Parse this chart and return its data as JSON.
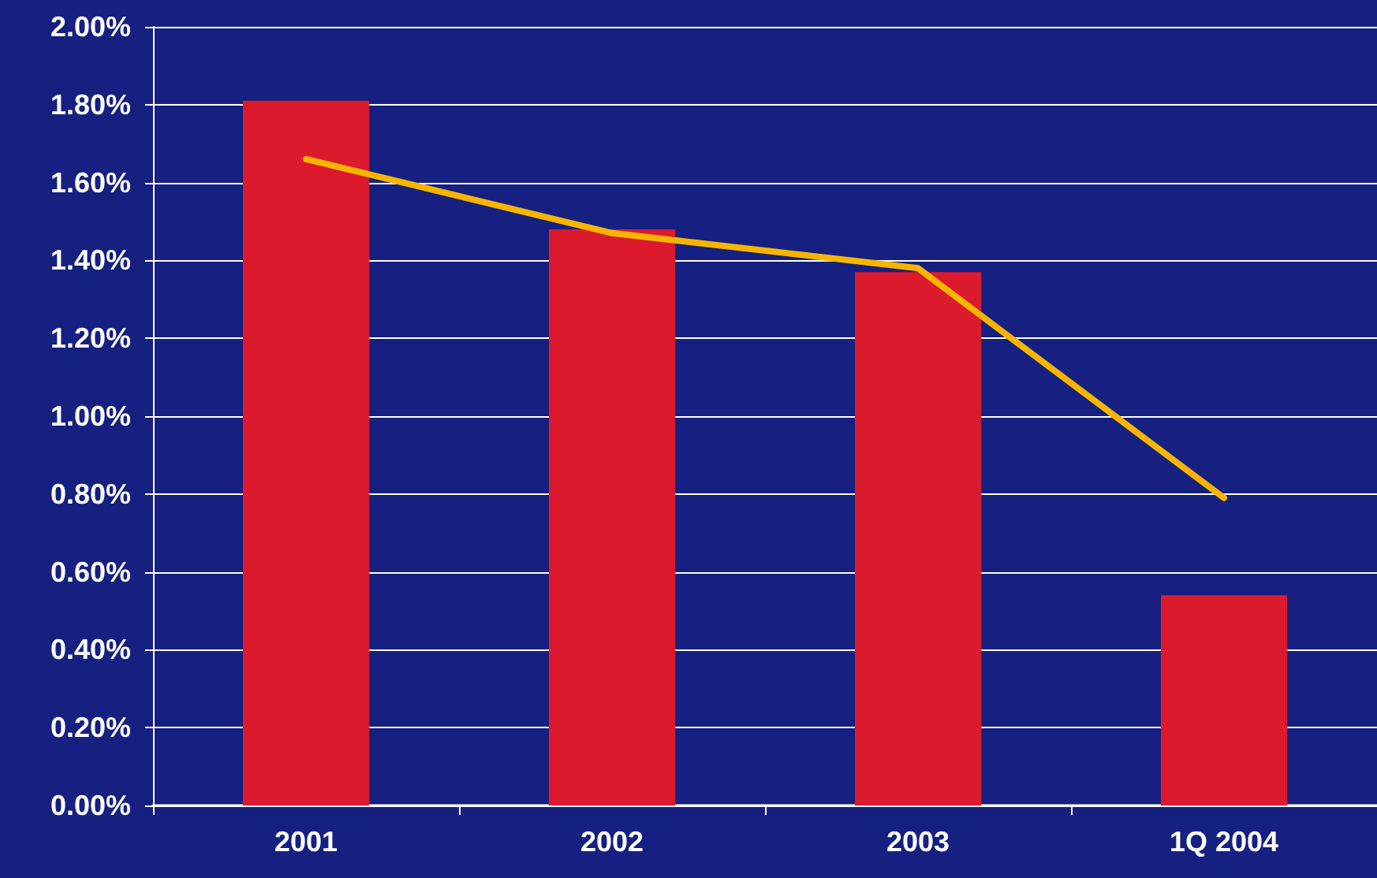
{
  "chart_data": {
    "type": "bar",
    "categories": [
      "2001",
      "2002",
      "2003",
      "1Q 2004"
    ],
    "series": [
      {
        "color": "#dc1a2e",
        "values": [
          1.81,
          1.48,
          1.37,
          0.54
        ]
      },
      {
        "type": "line",
        "color": "#f7b500",
        "values": [
          1.66,
          1.47,
          1.38,
          0.79
        ]
      }
    ],
    "ylim": [
      0,
      2
    ],
    "yticks": [
      {
        "value": 0,
        "label": "0.00%"
      },
      {
        "value": 0.2,
        "label": "0.20%"
      },
      {
        "value": 0.4,
        "label": "0.40%"
      },
      {
        "value": 0.6,
        "label": "0.60%"
      },
      {
        "value": 0.8,
        "label": "0.80%"
      },
      {
        "value": 1,
        "label": "1.00%"
      },
      {
        "value": 1.2,
        "label": "1.20%"
      },
      {
        "value": 1.4,
        "label": "1.40%"
      },
      {
        "value": 1.6,
        "label": "1.60%"
      },
      {
        "value": 1.8,
        "label": "1.80%"
      },
      {
        "value": 2,
        "label": "2.00%"
      }
    ],
    "grid": "y",
    "marker": "none",
    "line_style": "solid"
  }
}
